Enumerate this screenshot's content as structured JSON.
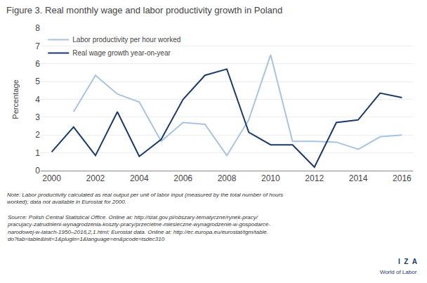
{
  "chart_data": {
    "type": "line",
    "title": "Figure 3. Real monthly wage and labor productivity growth in Poland",
    "ylabel": "Percentage",
    "x": [
      2000,
      2001,
      2002,
      2003,
      2004,
      2005,
      2006,
      2007,
      2008,
      2009,
      2010,
      2011,
      2012,
      2013,
      2014,
      2015,
      2016
    ],
    "series": [
      {
        "name": "Labor productivity per hour worked",
        "color": "#a8c4e0",
        "values": [
          null,
          3.3,
          5.35,
          4.3,
          3.85,
          1.65,
          2.7,
          2.6,
          0.85,
          2.85,
          6.5,
          1.65,
          1.65,
          1.6,
          1.2,
          1.9,
          2.0
        ]
      },
      {
        "name": "Real wage growth year-on-year",
        "color": "#1a3a6b",
        "values": [
          1.05,
          2.45,
          0.85,
          3.3,
          0.8,
          1.75,
          4.0,
          5.35,
          5.7,
          2.15,
          1.45,
          1.45,
          0.2,
          2.7,
          2.85,
          4.35,
          4.1
        ]
      }
    ],
    "xlim": [
      1999.5,
      2016.5
    ],
    "xticks": [
      2000,
      2002,
      2004,
      2006,
      2008,
      2010,
      2012,
      2014,
      2016
    ],
    "ylim": [
      0,
      8
    ],
    "yticks": [
      0,
      1,
      2,
      3,
      4,
      5,
      6,
      7,
      8
    ],
    "grid": true,
    "legend": "upper left",
    "annotations": [
      "Note: Labor productivity calculated as real output per unit of labor input (measured by the total number of hours\nworked); data not available in Eurostat for 2000.",
      "Source: Polish Central Statistical Office. Online at: http://stat.gov.pl/obszary-tematyczne/rynek-pracy/\npracujacy-zatrudnieni-wynagrodzenia-koszty-pracy/przecietne-miesieczne-wynagrodzenie-w-gospodarce-\nnarodowej-w-latach-1950–2016,2,1.html; Eurostat data. Online at: http://ec.europa.eu/eurostat/tgm/table.\ndo?tab=table&init=1&plugin=1&language=en&pcode=tsdec310",
      "I  Z  A",
      "World of Labor"
    ]
  }
}
